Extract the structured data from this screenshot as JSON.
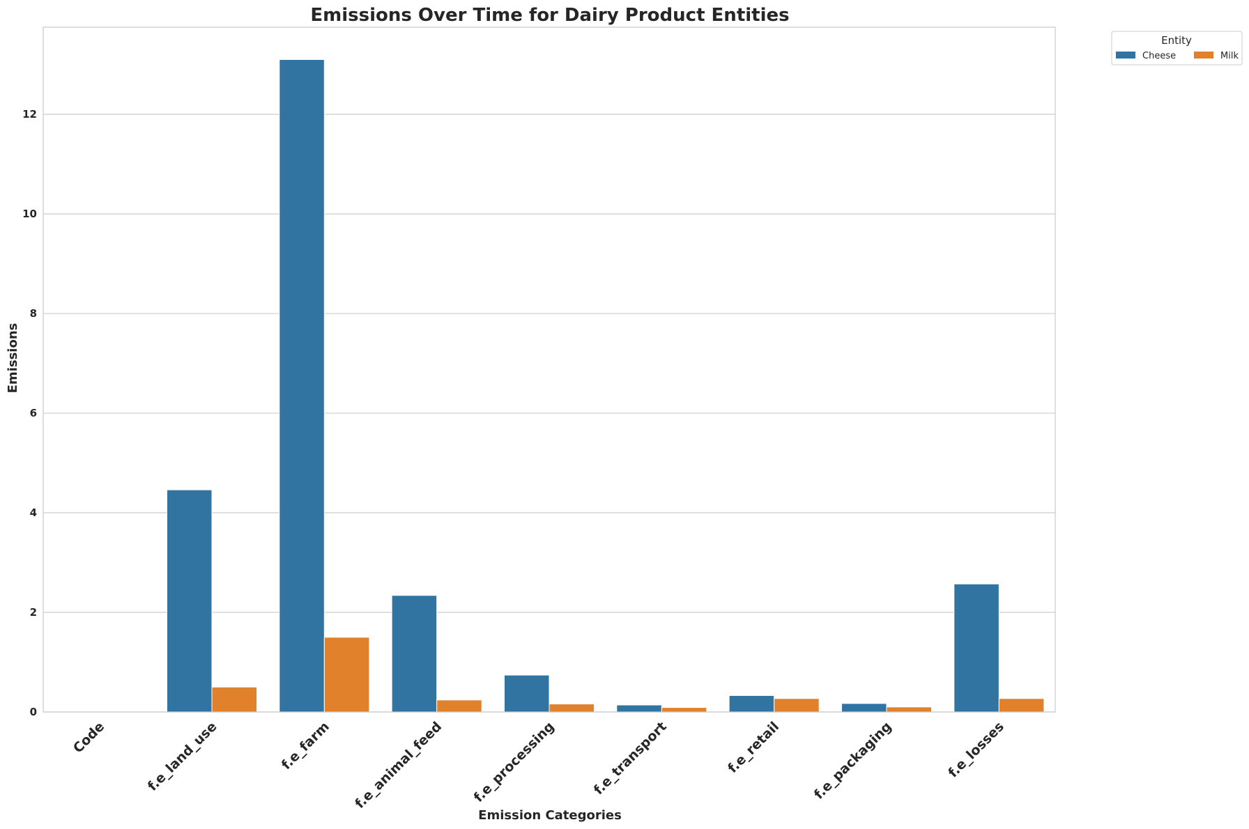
{
  "chart_data": {
    "type": "bar",
    "title": "Emissions Over Time for Dairy Product Entities",
    "xlabel": "Emission Categories",
    "ylabel": "Emissions",
    "categories": [
      "Code",
      "f.e_land_use",
      "f.e_farm",
      "f.e_animal_feed",
      "f.e_processing",
      "f.e_transport",
      "f.e_retail",
      "f.e_packaging",
      "f.e_losses"
    ],
    "series": [
      {
        "name": "Cheese",
        "color": "#3274a1",
        "values": [
          0,
          4.46,
          13.1,
          2.34,
          0.74,
          0.14,
          0.33,
          0.17,
          2.57
        ]
      },
      {
        "name": "Milk",
        "color": "#e1812c",
        "values": [
          0,
          0.5,
          1.5,
          0.24,
          0.16,
          0.09,
          0.27,
          0.1,
          0.27
        ]
      }
    ],
    "ylim": [
      0,
      13.75
    ],
    "yticks": [
      0,
      2,
      4,
      6,
      8,
      10,
      12
    ],
    "grid": "horizontal",
    "legend": {
      "title": "Entity",
      "placement": "outside-top-right"
    }
  }
}
